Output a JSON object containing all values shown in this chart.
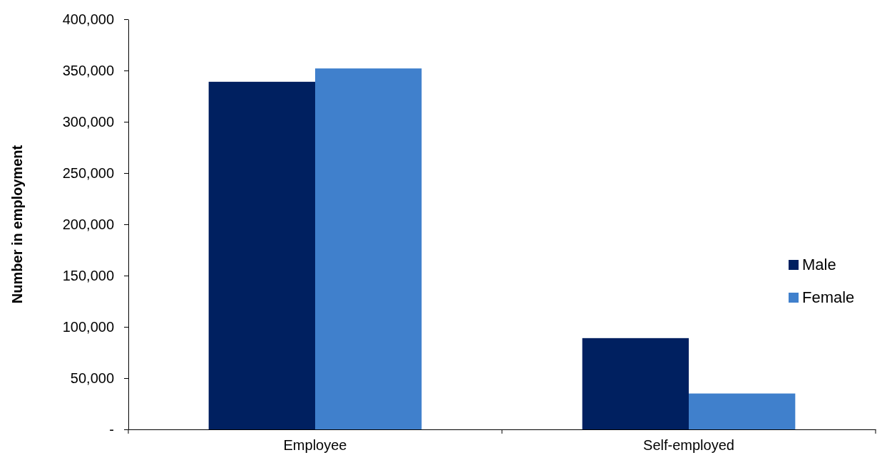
{
  "chart_data": {
    "type": "bar",
    "ylabel": "Number in employment",
    "categories": [
      "Employee",
      "Self-employed"
    ],
    "series": [
      {
        "name": "Male",
        "color": "#002060",
        "values": [
          339000,
          89000
        ]
      },
      {
        "name": "Female",
        "color": "#4080cc",
        "values": [
          352000,
          35000
        ]
      }
    ],
    "ylim": [
      0,
      400000
    ],
    "yticks": [
      {
        "value": 0,
        "label": "-"
      },
      {
        "value": 50000,
        "label": "50,000"
      },
      {
        "value": 100000,
        "label": "100,000"
      },
      {
        "value": 150000,
        "label": "150,000"
      },
      {
        "value": 200000,
        "label": "200,000"
      },
      {
        "value": 250000,
        "label": "250,000"
      },
      {
        "value": 300000,
        "label": "300,000"
      },
      {
        "value": 350000,
        "label": "350,000"
      },
      {
        "value": 400000,
        "label": "400,000"
      }
    ],
    "legend": "right"
  }
}
